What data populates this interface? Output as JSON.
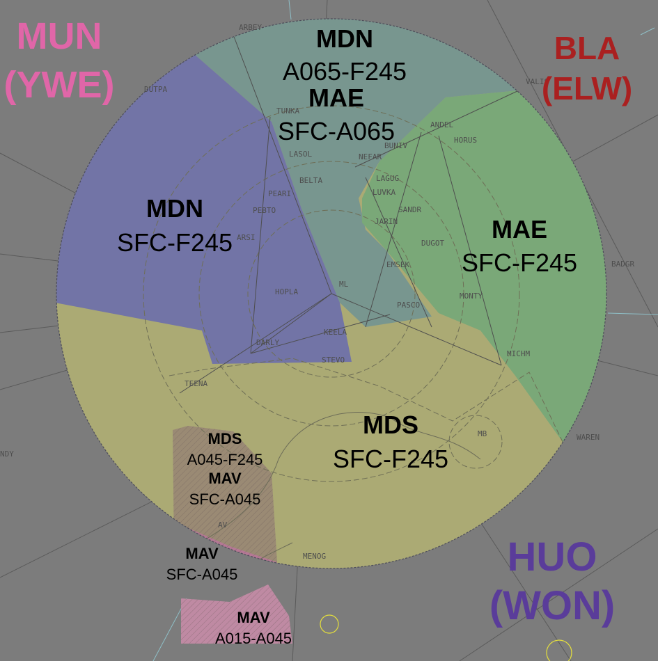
{
  "neighbours": [
    {
      "id": "mun",
      "name": "MUN",
      "sub": "(YWE)",
      "color": "#e066a8"
    },
    {
      "id": "bla",
      "name": "BLA",
      "sub": "(ELW)",
      "color": "#aa2020"
    },
    {
      "id": "huo",
      "name": "HUO",
      "sub": "(WON)",
      "color": "#5a3c9a"
    }
  ],
  "sectors": [
    {
      "id": "mdn-upper",
      "lines": [
        {
          "text": "MDN",
          "bold": true
        },
        {
          "text": "A065-F245",
          "bold": false
        }
      ]
    },
    {
      "id": "mae-lower",
      "lines": [
        {
          "text": "MAE",
          "bold": true
        },
        {
          "text": "SFC-A065",
          "bold": false
        }
      ]
    },
    {
      "id": "mdn-west",
      "lines": [
        {
          "text": "MDN",
          "bold": true
        },
        {
          "text": "SFC-F245",
          "bold": false
        }
      ]
    },
    {
      "id": "mae-east",
      "lines": [
        {
          "text": "MAE",
          "bold": true
        },
        {
          "text": "SFC-F245",
          "bold": false
        }
      ]
    },
    {
      "id": "mds-main",
      "lines": [
        {
          "text": "MDS",
          "bold": true
        },
        {
          "text": "SFC-F245",
          "bold": false
        }
      ]
    },
    {
      "id": "mds-mav-box",
      "lines": [
        {
          "text": "MDS",
          "bold": true
        },
        {
          "text": "A045-F245",
          "bold": false
        },
        {
          "text": "MAV",
          "bold": true
        },
        {
          "text": "SFC-A045",
          "bold": false
        }
      ]
    },
    {
      "id": "mav-mid",
      "lines": [
        {
          "text": "MAV",
          "bold": true
        },
        {
          "text": "SFC-A045",
          "bold": false
        }
      ]
    },
    {
      "id": "mav-low",
      "lines": [
        {
          "text": "MAV",
          "bold": true
        },
        {
          "text": "A015-A045",
          "bold": false
        }
      ]
    }
  ],
  "waypoints": [
    "ARBEY",
    "DUTPA",
    "TUNKA",
    "LASOL",
    "PEARI",
    "PEBTO",
    "ARSI",
    "BELTA",
    "HOPLA",
    "ML",
    "DARLY",
    "KEELA",
    "STEVO",
    "TEENA",
    "NEFAR",
    "BUNIV",
    "ANDEL",
    "HORUS",
    "VALIS",
    "LAGUG",
    "LUVKA",
    "SANDR",
    "JARIN",
    "DUGOT",
    "EMSEK",
    "PASCO",
    "MONTY",
    "MICHM",
    "BADGR",
    "WAREN",
    "MB",
    "AV",
    "MENOG",
    "NDY"
  ],
  "colors": {
    "background": "#7c7c7c",
    "mdn_upper": "#78968f",
    "mdn_west": "#7274a6",
    "mae_east": "#7aa878",
    "mds_main": "#abaa74",
    "mds_mav_box": "#9a8a74",
    "mav": "#b57895"
  }
}
